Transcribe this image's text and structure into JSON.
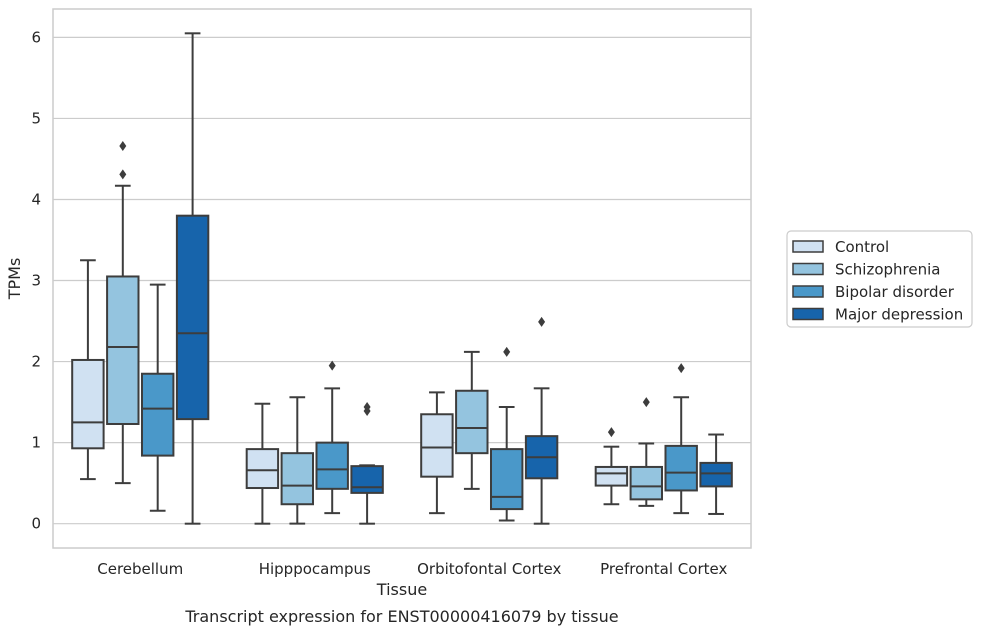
{
  "chart_data": {
    "type": "box",
    "title": "",
    "caption": "Transcript expression for ENST00000416079 by tissue",
    "xlabel": "Tissue",
    "ylabel": "TPMs",
    "ylim": [
      -0.3,
      6.35
    ],
    "yticks": [
      0,
      1,
      2,
      3,
      4,
      5,
      6
    ],
    "grid": "horizontal",
    "legend_position": "right",
    "categories": [
      "Cerebellum",
      "Hipppocampus",
      "Orbitofontal Cortex",
      "Prefrontal Cortex"
    ],
    "series": [
      {
        "name": "Control",
        "color": "#d0e1f2",
        "boxes": [
          {
            "whisker_low": 0.55,
            "q1": 0.93,
            "median": 1.25,
            "q3": 2.02,
            "whisker_high": 3.25,
            "outliers": []
          },
          {
            "whisker_low": 0.0,
            "q1": 0.44,
            "median": 0.66,
            "q3": 0.92,
            "whisker_high": 1.48,
            "outliers": []
          },
          {
            "whisker_low": 0.13,
            "q1": 0.58,
            "median": 0.94,
            "q3": 1.35,
            "whisker_high": 1.62,
            "outliers": []
          },
          {
            "whisker_low": 0.24,
            "q1": 0.47,
            "median": 0.62,
            "q3": 0.7,
            "whisker_high": 0.95,
            "outliers": [
              1.13
            ]
          }
        ]
      },
      {
        "name": "Schizophrenia",
        "color": "#94c4df",
        "boxes": [
          {
            "whisker_low": 0.5,
            "q1": 1.23,
            "median": 2.18,
            "q3": 3.05,
            "whisker_high": 4.17,
            "outliers": [
              4.31,
              4.66
            ]
          },
          {
            "whisker_low": 0.0,
            "q1": 0.24,
            "median": 0.47,
            "q3": 0.87,
            "whisker_high": 1.56,
            "outliers": []
          },
          {
            "whisker_low": 0.43,
            "q1": 0.87,
            "median": 1.18,
            "q3": 1.64,
            "whisker_high": 2.12,
            "outliers": []
          },
          {
            "whisker_low": 0.22,
            "q1": 0.3,
            "median": 0.46,
            "q3": 0.7,
            "whisker_high": 0.99,
            "outliers": [
              1.5
            ]
          }
        ]
      },
      {
        "name": "Bipolar disorder",
        "color": "#4a98c9",
        "boxes": [
          {
            "whisker_low": 0.16,
            "q1": 0.84,
            "median": 1.42,
            "q3": 1.85,
            "whisker_high": 2.95,
            "outliers": []
          },
          {
            "whisker_low": 0.13,
            "q1": 0.43,
            "median": 0.67,
            "q3": 1.0,
            "whisker_high": 1.67,
            "outliers": [
              1.95
            ]
          },
          {
            "whisker_low": 0.04,
            "q1": 0.18,
            "median": 0.33,
            "q3": 0.92,
            "whisker_high": 1.44,
            "outliers": [
              2.12
            ]
          },
          {
            "whisker_low": 0.13,
            "q1": 0.41,
            "median": 0.63,
            "q3": 0.96,
            "whisker_high": 1.56,
            "outliers": [
              1.92
            ]
          }
        ]
      },
      {
        "name": "Major depression",
        "color": "#1764ab",
        "boxes": [
          {
            "whisker_low": 0.0,
            "q1": 1.29,
            "median": 2.35,
            "q3": 3.8,
            "whisker_high": 6.05,
            "outliers": []
          },
          {
            "whisker_low": 0.0,
            "q1": 0.38,
            "median": 0.45,
            "q3": 0.71,
            "whisker_high": 0.72,
            "outliers": [
              1.39,
              1.44
            ]
          },
          {
            "whisker_low": 0.0,
            "q1": 0.56,
            "median": 0.82,
            "q3": 1.08,
            "whisker_high": 1.67,
            "outliers": [
              2.49
            ]
          },
          {
            "whisker_low": 0.12,
            "q1": 0.46,
            "median": 0.62,
            "q3": 0.75,
            "whisker_high": 1.1,
            "outliers": []
          }
        ]
      }
    ]
  }
}
